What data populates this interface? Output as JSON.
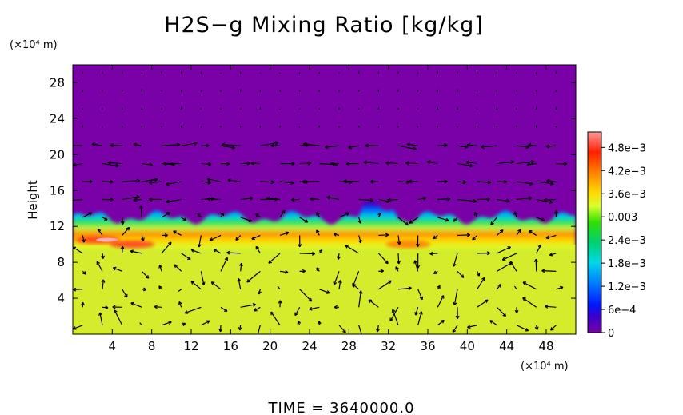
{
  "chart_data": {
    "type": "heatmap",
    "title": "H2S−g Mixing Ratio [kg/kg]",
    "ylabel": "Height",
    "x_unit": "(×10⁴ m)",
    "y_unit": "(×10⁴ m)",
    "xlim": [
      0,
      51
    ],
    "ylim": [
      0,
      30
    ],
    "x_ticks": [
      4,
      8,
      12,
      16,
      20,
      24,
      28,
      32,
      36,
      40,
      44,
      48
    ],
    "y_ticks": [
      4,
      8,
      12,
      16,
      20,
      24,
      28
    ],
    "colorbar": {
      "min": 0,
      "max": 0.0052,
      "tick_values": [
        0,
        0.0006,
        0.0012,
        0.0018,
        0.0024,
        0.003,
        0.0036,
        0.0042,
        0.0048
      ],
      "tick_labels": [
        "0",
        "6e−4",
        "1.2e−3",
        "1.8e−3",
        "2.4e−3",
        "0.003",
        "3.6e−3",
        "4.2e−3",
        "4.8e−3"
      ]
    },
    "field": {
      "lower_layer_value": 0.0033,
      "upper_layer_value": 0,
      "interface_height": 12,
      "interface_band": [
        9.5,
        13
      ],
      "hotspots": [
        {
          "x": 2.5,
          "y": 10.5,
          "value": 0.005
        },
        {
          "x": 6,
          "y": 10.0,
          "value": 0.0048
        },
        {
          "x": 34,
          "y": 10.0,
          "value": 0.0042
        }
      ]
    },
    "vector_field": {
      "note": "wind vectors overlaid on grid",
      "x_spacing": 2,
      "y_spacing": 2
    },
    "footer": "TIME  =  3640000.0"
  }
}
